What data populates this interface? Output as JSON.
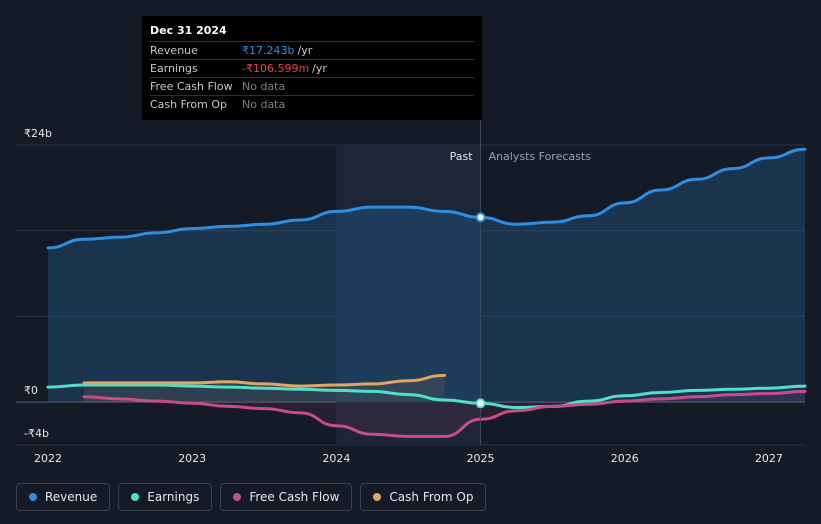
{
  "tooltip": {
    "date": "Dec 31 2024",
    "rows": [
      {
        "label": "Revenue",
        "value": "₹17.243b",
        "unit": "/yr",
        "color": "#2e8fe0"
      },
      {
        "label": "Earnings",
        "value": "-₹106.599m",
        "unit": "/yr",
        "color": "#e8444a"
      },
      {
        "label": "Free Cash Flow",
        "value": "No data",
        "unit": "",
        "color": "#7a7f88"
      },
      {
        "label": "Cash From Op",
        "value": "No data",
        "unit": "",
        "color": "#7a7f88"
      }
    ]
  },
  "chart_data": {
    "type": "line",
    "title": "",
    "x_ticks": [
      "2022",
      "2023",
      "2024",
      "2025",
      "2026",
      "2027"
    ],
    "y_ticks": [
      "₹24b",
      "₹0",
      "-₹4b"
    ],
    "ylim": [
      -4,
      24
    ],
    "xlim": [
      2022.0,
      2027.25
    ],
    "past_label": "Past",
    "forecast_label": "Analysts Forecasts",
    "divider_x": 2025.0,
    "series": [
      {
        "name": "Revenue",
        "color": "#2e8fe0",
        "points": [
          [
            2022.0,
            14.4
          ],
          [
            2022.25,
            15.2
          ],
          [
            2022.5,
            15.4
          ],
          [
            2022.75,
            15.8
          ],
          [
            2023.0,
            16.2
          ],
          [
            2023.25,
            16.4
          ],
          [
            2023.5,
            16.6
          ],
          [
            2023.75,
            17.0
          ],
          [
            2024.0,
            17.8
          ],
          [
            2024.25,
            18.2
          ],
          [
            2024.5,
            18.2
          ],
          [
            2024.75,
            17.8
          ],
          [
            2025.0,
            17.243
          ],
          [
            2025.25,
            16.6
          ],
          [
            2025.5,
            16.8
          ],
          [
            2025.75,
            17.4
          ],
          [
            2026.0,
            18.6
          ],
          [
            2026.25,
            19.8
          ],
          [
            2026.5,
            20.8
          ],
          [
            2026.75,
            21.8
          ],
          [
            2027.0,
            22.8
          ],
          [
            2027.25,
            23.6
          ]
        ]
      },
      {
        "name": "Earnings",
        "color": "#4fe0c8",
        "points": [
          [
            2022.0,
            1.4
          ],
          [
            2022.25,
            1.6
          ],
          [
            2022.5,
            1.6
          ],
          [
            2022.75,
            1.6
          ],
          [
            2023.0,
            1.5
          ],
          [
            2023.25,
            1.4
          ],
          [
            2023.5,
            1.3
          ],
          [
            2023.75,
            1.2
          ],
          [
            2024.0,
            1.1
          ],
          [
            2024.25,
            1.0
          ],
          [
            2024.5,
            0.7
          ],
          [
            2024.75,
            0.2
          ],
          [
            2025.0,
            -0.107
          ],
          [
            2025.25,
            -0.5
          ],
          [
            2025.5,
            -0.4
          ],
          [
            2025.75,
            0.1
          ],
          [
            2026.0,
            0.6
          ],
          [
            2026.25,
            0.9
          ],
          [
            2026.5,
            1.1
          ],
          [
            2026.75,
            1.2
          ],
          [
            2027.0,
            1.3
          ],
          [
            2027.25,
            1.5
          ]
        ]
      },
      {
        "name": "Free Cash Flow",
        "color": "#c94b8a",
        "points": [
          [
            2022.25,
            0.5
          ],
          [
            2022.5,
            0.3
          ],
          [
            2022.75,
            0.1
          ],
          [
            2023.0,
            -0.1
          ],
          [
            2023.25,
            -0.4
          ],
          [
            2023.5,
            -0.6
          ],
          [
            2023.75,
            -1.0
          ],
          [
            2024.0,
            -2.2
          ],
          [
            2024.25,
            -3.0
          ],
          [
            2024.5,
            -3.2
          ],
          [
            2024.75,
            -3.2
          ],
          [
            2025.0,
            -1.6
          ],
          [
            2025.25,
            -0.8
          ],
          [
            2025.5,
            -0.4
          ],
          [
            2025.75,
            -0.2
          ],
          [
            2026.0,
            0.1
          ],
          [
            2026.25,
            0.3
          ],
          [
            2026.5,
            0.5
          ],
          [
            2026.75,
            0.7
          ],
          [
            2027.0,
            0.8
          ],
          [
            2027.25,
            1.0
          ]
        ]
      },
      {
        "name": "Cash From Op",
        "color": "#e0a560",
        "points": [
          [
            2022.25,
            1.8
          ],
          [
            2022.5,
            1.8
          ],
          [
            2022.75,
            1.8
          ],
          [
            2023.0,
            1.8
          ],
          [
            2023.25,
            1.9
          ],
          [
            2023.5,
            1.7
          ],
          [
            2023.75,
            1.5
          ],
          [
            2024.0,
            1.6
          ],
          [
            2024.25,
            1.7
          ],
          [
            2024.5,
            2.0
          ],
          [
            2024.75,
            2.5
          ]
        ]
      }
    ],
    "highlight_points": [
      {
        "series": "Revenue",
        "x": 2025.0,
        "y": 17.243
      },
      {
        "series": "Earnings",
        "x": 2025.0,
        "y": -0.107
      }
    ]
  },
  "legend": [
    {
      "label": "Revenue",
      "color": "#2e8fe0"
    },
    {
      "label": "Earnings",
      "color": "#4fe0c8"
    },
    {
      "label": "Free Cash Flow",
      "color": "#c94b8a"
    },
    {
      "label": "Cash From Op",
      "color": "#e0a560"
    }
  ]
}
